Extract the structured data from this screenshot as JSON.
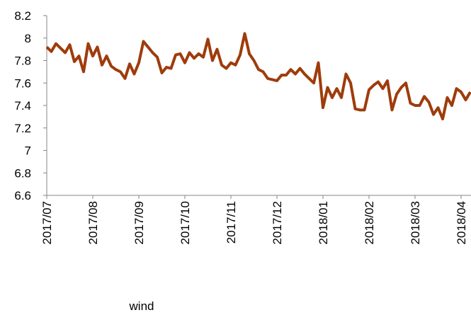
{
  "chart_data": {
    "type": "line",
    "categories": [
      "2017/07",
      null,
      null,
      null,
      null,
      null,
      null,
      null,
      null,
      null,
      "2017/08",
      null,
      null,
      null,
      null,
      null,
      null,
      null,
      null,
      null,
      "2017/09",
      null,
      null,
      null,
      null,
      null,
      null,
      null,
      null,
      null,
      "2017/10",
      null,
      null,
      null,
      null,
      null,
      null,
      null,
      null,
      null,
      "2017/11",
      null,
      null,
      null,
      null,
      null,
      null,
      null,
      null,
      null,
      "2017/12",
      null,
      null,
      null,
      null,
      null,
      null,
      null,
      null,
      null,
      "2018/01",
      null,
      null,
      null,
      null,
      null,
      null,
      null,
      null,
      null,
      "2018/02",
      null,
      null,
      null,
      null,
      null,
      null,
      null,
      null,
      null,
      "2018/03",
      null,
      null,
      null,
      null,
      null,
      null,
      null,
      null,
      null,
      "2018/04",
      null,
      null
    ],
    "series": [
      {
        "name": "wind",
        "color": "#9e3c0c",
        "values": [
          7.92,
          7.88,
          7.95,
          7.91,
          7.87,
          7.94,
          7.79,
          7.84,
          7.7,
          7.95,
          7.84,
          7.92,
          7.76,
          7.84,
          7.75,
          7.72,
          7.7,
          7.64,
          7.77,
          7.68,
          7.78,
          7.97,
          7.92,
          7.87,
          7.83,
          7.69,
          7.74,
          7.73,
          7.85,
          7.86,
          7.78,
          7.87,
          7.82,
          7.86,
          7.83,
          7.99,
          7.8,
          7.9,
          7.76,
          7.73,
          7.78,
          7.76,
          7.85,
          8.04,
          7.86,
          7.8,
          7.72,
          7.7,
          7.64,
          7.63,
          7.62,
          7.67,
          7.67,
          7.72,
          7.68,
          7.73,
          7.68,
          7.64,
          7.6,
          7.78,
          7.38,
          7.56,
          7.47,
          7.55,
          7.47,
          7.68,
          7.6,
          7.37,
          7.36,
          7.36,
          7.54,
          7.58,
          7.61,
          7.55,
          7.62,
          7.36,
          7.5,
          7.56,
          7.6,
          7.42,
          7.4,
          7.4,
          7.48,
          7.43,
          7.32,
          7.38,
          7.28,
          7.47,
          7.4,
          7.55,
          7.52,
          7.45,
          7.52
        ]
      }
    ],
    "ylim": [
      6.6,
      8.2
    ],
    "yticks": [
      6.6,
      6.8,
      7,
      7.2,
      7.4,
      7.6,
      7.8,
      8,
      8.2
    ]
  }
}
